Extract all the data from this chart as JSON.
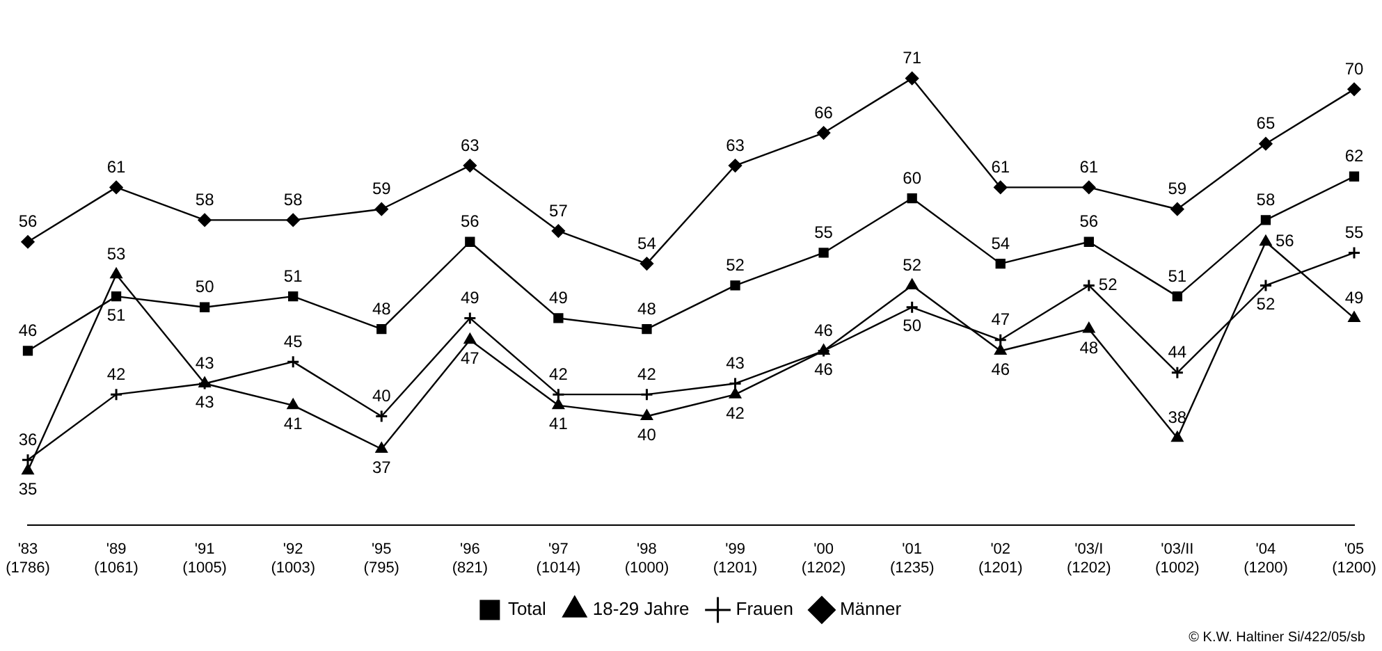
{
  "chart_data": {
    "type": "line",
    "categories": [
      "'83 (1786)",
      "'89 (1061)",
      "'91 (1005)",
      "'92 (1003)",
      "'95 (795)",
      "'96 (821)",
      "'97 (1014)",
      "'98 (1000)",
      "'99 (1201)",
      "'00 (1202)",
      "'01 (1235)",
      "'02 (1201)",
      "'03/I (1202)",
      "'03/II (1002)",
      "'04 (1200)",
      "'05 (1200)"
    ],
    "series": [
      {
        "name": "Total",
        "color": "#000000",
        "marker": "square",
        "values": [
          46,
          51,
          50,
          51,
          48,
          56,
          49,
          48,
          52,
          55,
          60,
          54,
          56,
          51,
          58,
          62
        ]
      },
      {
        "name": "18-29 Jahre",
        "color": "#000000",
        "marker": "triangle",
        "values": [
          35,
          53,
          43,
          41,
          37,
          47,
          41,
          40,
          42,
          46,
          52,
          46,
          48,
          38,
          56,
          49
        ]
      },
      {
        "name": "Frauen",
        "color": "#000000",
        "marker": "cross",
        "values": [
          36,
          42,
          43,
          45,
          40,
          49,
          42,
          42,
          43,
          46,
          50,
          47,
          52,
          44,
          52,
          55
        ]
      },
      {
        "name": "Männer",
        "color": "#000000",
        "marker": "diamond",
        "values": [
          56,
          61,
          58,
          58,
          59,
          63,
          57,
          54,
          63,
          66,
          71,
          61,
          61,
          59,
          65,
          70
        ]
      }
    ],
    "data_labels": true,
    "grid": false,
    "legend": "bottom",
    "line_style": "solid",
    "annotations": [
      "© K.W. Haltiner Si/422/05/sb"
    ]
  }
}
